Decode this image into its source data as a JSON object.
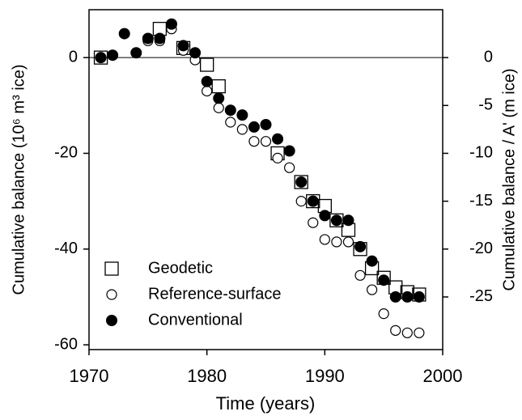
{
  "chart_data": {
    "type": "scatter",
    "xlabel": "Time (years)",
    "ylabel": "Cumulative balance (10⁶ m³ ice)",
    "y2label": "Cumulative balance / A' (m ice)",
    "xlim": [
      1970,
      2000
    ],
    "xticks": [
      1970,
      1980,
      1990,
      2000
    ],
    "ylim": [
      -61,
      10
    ],
    "yticks": [
      -60,
      -40,
      -20,
      0
    ],
    "y2lim": [
      -30.5,
      5
    ],
    "y2ticks": [
      -25,
      -20,
      -15,
      -10,
      -5,
      0
    ],
    "legend": "lower left",
    "series": [
      {
        "name": "Geodetic",
        "color": "#000000",
        "marker": "open-square",
        "x": [
          1971,
          1976,
          1978,
          1980,
          1981,
          1986,
          1988,
          1989,
          1990,
          1991,
          1992,
          1993,
          1994,
          1995,
          1996,
          1997,
          1998
        ],
        "values": [
          0,
          6,
          2,
          -1.5,
          -6,
          -20,
          -26,
          -30,
          -31,
          -34,
          -36,
          -40,
          -44,
          -46,
          -48,
          -49,
          -49.5
        ]
      },
      {
        "name": "Reference-surface",
        "color": "#000000",
        "marker": "open-circle",
        "x": [
          1975,
          1976,
          1977,
          1978,
          1979,
          1980,
          1981,
          1982,
          1983,
          1984,
          1985,
          1986,
          1987,
          1988,
          1989,
          1990,
          1991,
          1992,
          1993,
          1994,
          1995,
          1996,
          1997,
          1998
        ],
        "values": [
          3.5,
          3.5,
          6,
          1.5,
          -0.5,
          -7,
          -10.5,
          -13.5,
          -15,
          -17.5,
          -17.5,
          -21,
          -23,
          -30,
          -34.5,
          -38,
          -38.5,
          -38.5,
          -45.5,
          -48.5,
          -53.5,
          -57,
          -57.5,
          -57.5
        ]
      },
      {
        "name": "Conventional",
        "color": "#000000",
        "marker": "filled-circle",
        "x": [
          1971,
          1972,
          1973,
          1974,
          1975,
          1976,
          1977,
          1978,
          1979,
          1980,
          1981,
          1982,
          1983,
          1984,
          1985,
          1986,
          1987,
          1988,
          1989,
          1990,
          1991,
          1992,
          1993,
          1994,
          1995,
          1996,
          1997,
          1998
        ],
        "values": [
          0,
          0.5,
          5,
          1,
          4,
          4,
          7,
          2.5,
          1,
          -5,
          -8.5,
          -11,
          -12,
          -14.5,
          -14,
          -17,
          -19.5,
          -26,
          -30,
          -33,
          -34,
          -34,
          -39.5,
          -42.5,
          -46.5,
          -50,
          -50,
          -50
        ]
      }
    ]
  }
}
